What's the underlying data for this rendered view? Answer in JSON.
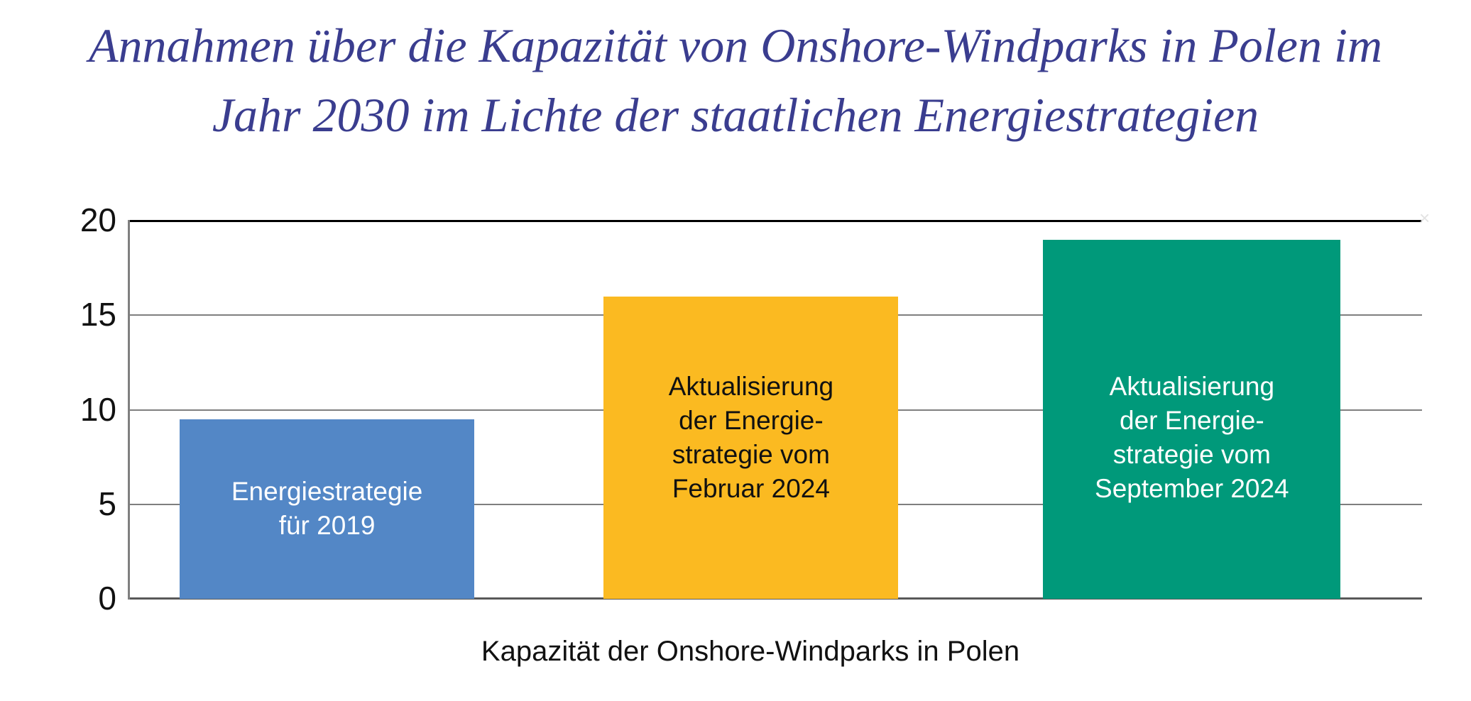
{
  "title": {
    "line1": "Annahmen über die Kapazität von Onshore-Windparks in Polen im",
    "line2": "Jahr 2030 im Lichte der staatlichen Energiestrategien",
    "color": "#3a3d8f"
  },
  "decorations": {
    "faint_x_mark": "×"
  },
  "chart_data": {
    "type": "bar",
    "title": "Annahmen über die Kapazität von Onshore-Windparks in Polen im Jahr 2030 im Lichte der staatlichen Energiestrategien",
    "xlabel": "Kapazität der Onshore-Windparks in Polen",
    "ylabel": "",
    "ylim": [
      0,
      20
    ],
    "y_ticks": [
      20,
      15,
      10,
      5,
      0
    ],
    "grid": true,
    "legend": false,
    "categories": [
      "Energiestrategie für 2019",
      "Aktualisierung der Energiestrategie vom Februar 2024",
      "Aktualisierung der Energiestrategie vom September 2024"
    ],
    "values": [
      9.5,
      16,
      19
    ],
    "colors": [
      "#5387c6",
      "#fbba21",
      "#00997a"
    ],
    "bar_label_lines": [
      [
        "Energiestrategie",
        "für 2019"
      ],
      [
        "Aktualisierung",
        "der Energie-",
        "strategie vom",
        "Februar 2024"
      ],
      [
        "Aktualisierung",
        "der Energie-",
        "strategie vom",
        "September 2024"
      ]
    ]
  }
}
